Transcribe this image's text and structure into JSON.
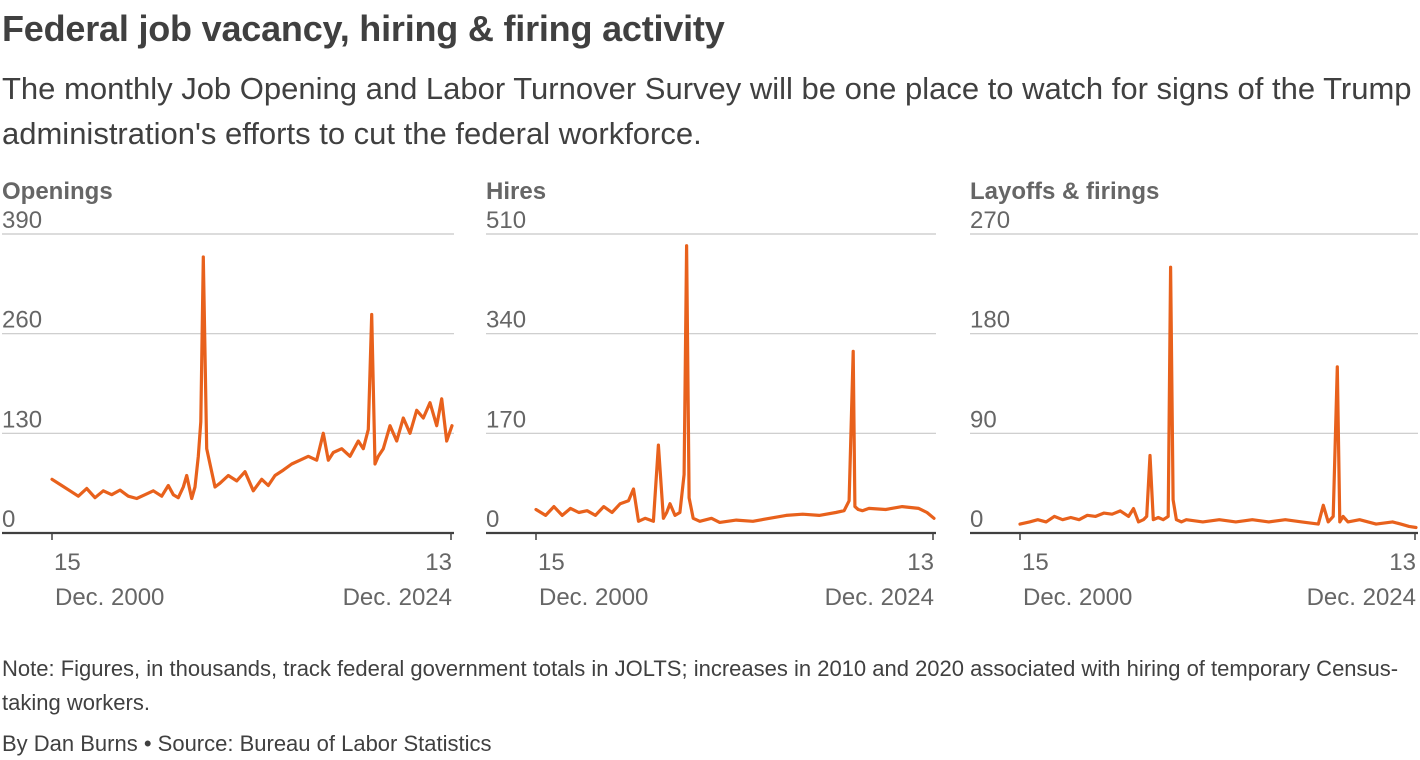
{
  "header": {
    "title": "Federal job vacancy, hiring & firing activity",
    "subtitle": "The monthly Job Opening and Labor Turnover Survey will be one place to watch for signs of the Trump administration's efforts to cut the federal workforce."
  },
  "footer": {
    "note": "Note: Figures, in thousands, track federal government totals in JOLTS; increases in 2010 and 2020 associated with hiring of temporary Census-taking workers.",
    "byline": "By Dan Burns • Source: Bureau of Labor Statistics"
  },
  "colors": {
    "line": "#e8611c",
    "grid": "#c8c8c8",
    "axis": "#404040",
    "text": "#666666"
  },
  "chart_data": [
    {
      "type": "line",
      "title": "Openings",
      "units": "thousands",
      "ylim": [
        0,
        390
      ],
      "yticks": [
        0,
        130,
        260,
        390
      ],
      "x_start_label": "15",
      "x_start_sublabel": "Dec. 2000",
      "x_end_label": "13",
      "x_end_sublabel": "Dec. 2024",
      "x_domain": [
        2000.92,
        2024.92
      ],
      "series": [
        {
          "name": "Openings",
          "x": [
            2000.92,
            2001.5,
            2002.0,
            2002.5,
            2003.0,
            2003.5,
            2004.0,
            2004.5,
            2005.0,
            2005.5,
            2006.0,
            2006.5,
            2007.0,
            2007.5,
            2007.9,
            2008.2,
            2008.5,
            2008.8,
            2009.0,
            2009.3,
            2009.5,
            2009.7,
            2009.85,
            2010.0,
            2010.2,
            2010.4,
            2010.7,
            2011.0,
            2011.5,
            2012.0,
            2012.5,
            2013.0,
            2013.5,
            2013.9,
            2014.3,
            2014.8,
            2015.3,
            2015.8,
            2016.3,
            2016.8,
            2017.2,
            2017.5,
            2017.8,
            2018.3,
            2018.8,
            2019.3,
            2019.6,
            2019.9,
            2020.1,
            2020.3,
            2020.5,
            2020.8,
            2021.2,
            2021.6,
            2022.0,
            2022.4,
            2022.8,
            2023.2,
            2023.6,
            2024.0,
            2024.3,
            2024.6,
            2024.92
          ],
          "values": [
            70,
            62,
            55,
            48,
            58,
            46,
            55,
            50,
            56,
            48,
            45,
            50,
            55,
            48,
            62,
            50,
            46,
            60,
            75,
            45,
            60,
            100,
            145,
            360,
            110,
            90,
            60,
            65,
            75,
            68,
            80,
            55,
            70,
            62,
            75,
            82,
            90,
            95,
            100,
            95,
            130,
            95,
            105,
            110,
            100,
            120,
            110,
            135,
            285,
            90,
            100,
            110,
            140,
            120,
            150,
            130,
            160,
            150,
            170,
            140,
            175,
            120,
            140
          ]
        }
      ]
    },
    {
      "type": "line",
      "title": "Hires",
      "units": "thousands",
      "ylim": [
        0,
        510
      ],
      "yticks": [
        0,
        170,
        340,
        510
      ],
      "x_start_label": "15",
      "x_start_sublabel": "Dec. 2000",
      "x_end_label": "13",
      "x_end_sublabel": "Dec. 2024",
      "x_domain": [
        2000.92,
        2024.92
      ],
      "series": [
        {
          "name": "Hires",
          "x": [
            2000.92,
            2001.5,
            2002.0,
            2002.5,
            2003.0,
            2003.5,
            2004.0,
            2004.5,
            2005.0,
            2005.5,
            2006.0,
            2006.5,
            2006.8,
            2007.1,
            2007.5,
            2008.0,
            2008.3,
            2008.6,
            2008.8,
            2009.0,
            2009.3,
            2009.6,
            2009.85,
            2010.0,
            2010.15,
            2010.4,
            2010.8,
            2011.5,
            2012.0,
            2013.0,
            2014.0,
            2015.0,
            2016.0,
            2017.0,
            2018.0,
            2019.0,
            2019.5,
            2019.8,
            2020.05,
            2020.15,
            2020.35,
            2020.6,
            2021.0,
            2022.0,
            2023.0,
            2024.0,
            2024.5,
            2024.92
          ],
          "values": [
            40,
            30,
            45,
            30,
            42,
            35,
            38,
            30,
            45,
            35,
            50,
            55,
            75,
            20,
            25,
            20,
            150,
            25,
            35,
            50,
            30,
            35,
            100,
            490,
            60,
            25,
            20,
            25,
            18,
            22,
            20,
            25,
            30,
            32,
            30,
            35,
            38,
            55,
            310,
            45,
            40,
            38,
            42,
            40,
            45,
            42,
            35,
            25
          ]
        }
      ]
    },
    {
      "type": "line",
      "title": "Layoffs & firings",
      "units": "thousands",
      "ylim": [
        0,
        270
      ],
      "yticks": [
        0,
        90,
        180,
        270
      ],
      "x_start_label": "15",
      "x_start_sublabel": "Dec. 2000",
      "x_end_label": "13",
      "x_end_sublabel": "Dec. 2024",
      "x_domain": [
        2000.92,
        2024.92
      ],
      "series": [
        {
          "name": "Layoffs & firings",
          "x": [
            2000.92,
            2001.5,
            2002.0,
            2002.5,
            2003.0,
            2003.5,
            2004.0,
            2004.5,
            2005.0,
            2005.5,
            2006.0,
            2006.5,
            2007.0,
            2007.5,
            2007.8,
            2008.1,
            2008.4,
            2008.6,
            2008.8,
            2009.0,
            2009.3,
            2009.6,
            2009.9,
            2010.05,
            2010.2,
            2010.4,
            2010.7,
            2011.0,
            2012.0,
            2013.0,
            2014.0,
            2015.0,
            2016.0,
            2017.0,
            2018.0,
            2019.0,
            2019.3,
            2019.6,
            2019.9,
            2020.15,
            2020.3,
            2020.5,
            2020.8,
            2021.5,
            2022.5,
            2023.5,
            2024.0,
            2024.5,
            2024.92
          ],
          "values": [
            8,
            10,
            12,
            10,
            15,
            12,
            14,
            12,
            16,
            15,
            18,
            17,
            20,
            15,
            22,
            10,
            12,
            15,
            70,
            12,
            14,
            12,
            15,
            240,
            30,
            12,
            10,
            12,
            10,
            12,
            10,
            12,
            10,
            12,
            10,
            8,
            25,
            10,
            15,
            150,
            10,
            15,
            10,
            12,
            8,
            10,
            8,
            6,
            5
          ]
        }
      ]
    }
  ]
}
